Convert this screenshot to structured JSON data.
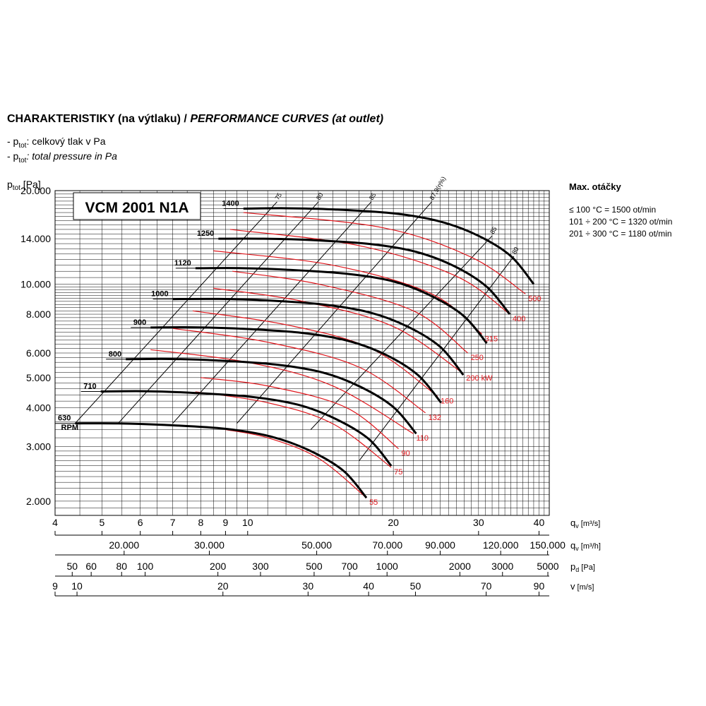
{
  "header": {
    "title_main": "CHARAKTERISTIKY (na výtlaku) /",
    "title_italic": "PERFORMANCE CURVES (at outlet)",
    "note1_prefix": "- p",
    "note1_sub": "tot",
    "note1_text": ": celkový tlak v Pa",
    "note2_prefix": "- p",
    "note2_sub": "tot",
    "note2_text": ": total pressure in Pa"
  },
  "side_info": {
    "heading": "Max. otáčky",
    "lines": [
      "≤ 100 °C = 1500 ot/min",
      "101 ÷ 200 °C = 1320 ot/min",
      "201 ÷ 300 °C = 1180 ot/min"
    ]
  },
  "chart_data": {
    "type": "line",
    "model": "VCM 2001 N1A",
    "ylabel_main": "p",
    "ylabel_sub": "tot",
    "ylabel_unit": "[Pa]",
    "y_scale": "log",
    "x_scale": "log",
    "ylim": [
      1800,
      20000
    ],
    "xlim": [
      4,
      42
    ],
    "y_ticks": [
      {
        "value": 20000,
        "label": "20.000"
      },
      {
        "value": 14000,
        "label": "14.000"
      },
      {
        "value": 10000,
        "label": "10.000"
      },
      {
        "value": 8000,
        "label": "8.000"
      },
      {
        "value": 6000,
        "label": "6.000"
      },
      {
        "value": 5000,
        "label": "5.000"
      },
      {
        "value": 4000,
        "label": "4.000"
      },
      {
        "value": 3000,
        "label": "3.000"
      },
      {
        "value": 2000,
        "label": "2.000"
      }
    ],
    "x_axes": [
      {
        "label_main": "q",
        "label_sub": "v",
        "label_unit": "[m³/s]",
        "ticks": [
          {
            "x": 4,
            "label": "4"
          },
          {
            "x": 5,
            "label": "5"
          },
          {
            "x": 6,
            "label": "6"
          },
          {
            "x": 7,
            "label": "7"
          },
          {
            "x": 8,
            "label": "8"
          },
          {
            "x": 9,
            "label": "9"
          },
          {
            "x": 10,
            "label": "10"
          },
          {
            "x": 20,
            "label": "20"
          },
          {
            "x": 30,
            "label": "30"
          },
          {
            "x": 40,
            "label": "40"
          }
        ]
      },
      {
        "label_main": "q",
        "label_sub": "v",
        "label_unit": "[m³/h]",
        "ticks": [
          {
            "x": 5.556,
            "label": "20.000"
          },
          {
            "x": 8.333,
            "label": "30.000"
          },
          {
            "x": 13.889,
            "label": "50.000"
          },
          {
            "x": 19.444,
            "label": "70.000"
          },
          {
            "x": 25.0,
            "label": "90.000"
          },
          {
            "x": 33.333,
            "label": "120.000"
          },
          {
            "x": 41.667,
            "label": "150.000"
          }
        ]
      },
      {
        "label_main": "p",
        "label_sub": "d",
        "label_unit": "[Pa]",
        "ticks": [
          {
            "x": 4.34,
            "label": "50"
          },
          {
            "x": 4.75,
            "label": "60"
          },
          {
            "x": 5.49,
            "label": "80"
          },
          {
            "x": 6.14,
            "label": "100"
          },
          {
            "x": 8.68,
            "label": "200"
          },
          {
            "x": 10.63,
            "label": "300"
          },
          {
            "x": 13.72,
            "label": "500"
          },
          {
            "x": 16.24,
            "label": "700"
          },
          {
            "x": 19.41,
            "label": "1000"
          },
          {
            "x": 27.45,
            "label": "2000"
          },
          {
            "x": 33.62,
            "label": "3000"
          },
          {
            "x": 43.4,
            "label": "5000"
          }
        ]
      },
      {
        "label_main": "v",
        "label_sub": "",
        "label_unit": "[m/s]",
        "ticks": [
          {
            "x": 4.0,
            "label": "9"
          },
          {
            "x": 4.44,
            "label": "10"
          },
          {
            "x": 8.89,
            "label": "20"
          },
          {
            "x": 13.33,
            "label": "30"
          },
          {
            "x": 17.78,
            "label": "40"
          },
          {
            "x": 22.22,
            "label": "50"
          },
          {
            "x": 31.11,
            "label": "70"
          },
          {
            "x": 40.0,
            "label": "90"
          }
        ]
      }
    ],
    "rpm_curves": [
      {
        "label": "1400",
        "x": [
          9.8,
          12,
          15,
          20,
          25,
          30,
          35,
          39
        ],
        "y": [
          17500,
          17550,
          17400,
          16900,
          15900,
          14300,
          12300,
          10000
        ]
      },
      {
        "label": "1250",
        "x": [
          8.7,
          10.7,
          13.4,
          17.9,
          22.3,
          26.8,
          31.2,
          34.8
        ],
        "y": [
          14000,
          14000,
          13870,
          13460,
          12700,
          11400,
          9800,
          8000
        ]
      },
      {
        "label": "1120",
        "x": [
          7.8,
          9.6,
          12,
          16,
          20,
          24,
          28,
          31.2
        ],
        "y": [
          11250,
          11260,
          11130,
          10800,
          10200,
          9150,
          7880,
          6450
        ]
      },
      {
        "label": "1000",
        "x": [
          7.0,
          8.6,
          10.7,
          14.3,
          17.9,
          21.4,
          25,
          27.9
        ],
        "y": [
          8950,
          8960,
          8880,
          8600,
          8100,
          7300,
          6280,
          5100
        ]
      },
      {
        "label": "900",
        "x": [
          6.3,
          7.7,
          9.6,
          12.9,
          16.1,
          19.3,
          22.5,
          25.1
        ],
        "y": [
          7250,
          7260,
          7190,
          6970,
          6570,
          5920,
          5090,
          4150
        ]
      },
      {
        "label": "800",
        "x": [
          5.6,
          6.9,
          8.6,
          11.4,
          14.3,
          17.1,
          20,
          22.3
        ],
        "y": [
          5730,
          5740,
          5680,
          5510,
          5190,
          4670,
          4020,
          3300
        ]
      },
      {
        "label": "710",
        "x": [
          4.97,
          6.1,
          7.6,
          10.1,
          12.7,
          15.2,
          17.8,
          19.8
        ],
        "y": [
          4510,
          4520,
          4470,
          4340,
          4090,
          3680,
          3170,
          2600
        ]
      },
      {
        "label": "630",
        "x": [
          4.4,
          5.4,
          6.75,
          9.0,
          11.25,
          13.5,
          15.8,
          17.6
        ],
        "y": [
          3560,
          3560,
          3520,
          3420,
          3220,
          2900,
          2500,
          2050
        ]
      }
    ],
    "rpm_unit": "RPM",
    "power_curves": [
      {
        "label": "55",
        "x": [
          9,
          11,
          14,
          17.6
        ],
        "y": [
          3400,
          3200,
          2750,
          2050
        ]
      },
      {
        "label": "75",
        "x": [
          7.8,
          11,
          15,
          19.8
        ],
        "y": [
          4500,
          4150,
          3550,
          2570
        ]
      },
      {
        "label": "90",
        "x": [
          8,
          11,
          16,
          20.5
        ],
        "y": [
          5000,
          4700,
          4000,
          2950
        ]
      },
      {
        "label": "110",
        "x": [
          6.3,
          10,
          15,
          22
        ],
        "y": [
          6150,
          5600,
          4700,
          3300
        ]
      },
      {
        "label": "132",
        "x": [
          7,
          11,
          17,
          23.3
        ],
        "y": [
          7200,
          6500,
          5400,
          3850
        ]
      },
      {
        "label": "160",
        "x": [
          7.7,
          12,
          18,
          24.7
        ],
        "y": [
          8200,
          7400,
          6200,
          4350
        ]
      },
      {
        "label": "200 kW",
        "x": [
          8.5,
          13,
          20,
          27.9
        ],
        "y": [
          9700,
          8800,
          7300,
          5150
        ]
      },
      {
        "label": "250",
        "x": [
          9.3,
          14,
          22,
          28.5
        ],
        "y": [
          11000,
          10000,
          8200,
          6000
        ]
      },
      {
        "label": "315",
        "x": [
          8.5,
          15,
          24,
          30.5
        ],
        "y": [
          12800,
          11500,
          9300,
          6900
        ]
      },
      {
        "label": "400",
        "x": [
          9.2,
          17,
          27,
          34.8
        ],
        "y": [
          15000,
          13300,
          10600,
          8000
        ]
      },
      {
        "label": "500",
        "x": [
          9.8,
          19,
          29,
          37.5
        ],
        "y": [
          17000,
          15200,
          12200,
          9300
        ]
      }
    ],
    "efficiency_lines": [
      {
        "label": "75",
        "x": [
          4.4,
          11.5
        ],
        "y": [
          3560,
          18400
        ]
      },
      {
        "label": "80",
        "x": [
          5.4,
          14
        ],
        "y": [
          3560,
          18400
        ]
      },
      {
        "label": "85",
        "x": [
          7.0,
          18
        ],
        "y": [
          3560,
          18400
        ]
      },
      {
        "label": "87,9(η%)",
        "x": [
          9.5,
          24
        ],
        "y": [
          3560,
          18400
        ]
      },
      {
        "label": "85",
        "x": [
          13.5,
          32
        ],
        "y": [
          3400,
          14300
        ]
      },
      {
        "label": "80",
        "x": [
          17.0,
          35.5
        ],
        "y": [
          2700,
          12300
        ]
      }
    ]
  }
}
